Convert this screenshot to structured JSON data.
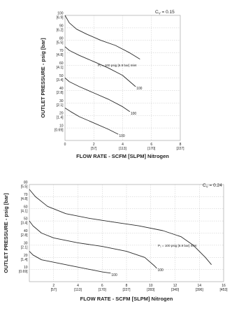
{
  "chart_data": [
    {
      "type": "line",
      "title": "",
      "cv_label": "C",
      "cv_sub": "V",
      "cv_value": " = 0.15",
      "xlabel": "FLOW RATE - SCFM [SLPM] Nitrogen",
      "ylabel": "OUTLET PRESSURE - psig [bar]",
      "xlim": [
        0,
        8
      ],
      "ylim": [
        0,
        100
      ],
      "x_ticks": [
        {
          "value": 0,
          "label": "0",
          "sub": ""
        },
        {
          "value": 2,
          "label": "2",
          "sub": "[57]"
        },
        {
          "value": 4,
          "label": "4",
          "sub": "[113]"
        },
        {
          "value": 6,
          "label": "6",
          "sub": "[170]"
        },
        {
          "value": 8,
          "label": "8",
          "sub": "[227]"
        }
      ],
      "y_ticks": [
        {
          "value": 10,
          "label": "10",
          "sub": "[0.69]"
        },
        {
          "value": 20,
          "label": "20",
          "sub": "[1.4]"
        },
        {
          "value": 30,
          "label": "30",
          "sub": "[2.1]"
        },
        {
          "value": 40,
          "label": "40",
          "sub": "[2.8]"
        },
        {
          "value": 50,
          "label": "50",
          "sub": "[3.4]"
        },
        {
          "value": 60,
          "label": "60",
          "sub": "[4.1]"
        },
        {
          "value": 70,
          "label": "70",
          "sub": "[4.8]"
        },
        {
          "value": 80,
          "label": "80",
          "sub": "[5.5]"
        },
        {
          "value": 90,
          "label": "90",
          "sub": "[6.2]"
        },
        {
          "value": 100,
          "label": "100",
          "sub": "[6.9]"
        }
      ],
      "annotation": "P₁ = 100 psig [6.9 bar] Inlet",
      "series": [
        {
          "label": "",
          "points": [
            [
              0,
              100
            ],
            [
              0.3,
              94
            ],
            [
              0.8,
              89
            ],
            [
              1.5,
              85
            ],
            [
              2.5,
              80
            ],
            [
              3.5,
              76
            ],
            [
              4.5,
              70
            ],
            [
              5.2,
              65
            ]
          ]
        },
        {
          "label": "100",
          "points": [
            [
              0,
              75
            ],
            [
              0.3,
              72
            ],
            [
              1,
              68
            ],
            [
              2,
              63
            ],
            [
              3,
              58
            ],
            [
              4,
              52
            ],
            [
              4.9,
              43
            ]
          ]
        },
        {
          "label": "100",
          "points": [
            [
              0,
              50
            ],
            [
              0.3,
              47
            ],
            [
              1,
              43
            ],
            [
              2,
              38
            ],
            [
              3,
              33
            ],
            [
              4,
              27
            ],
            [
              4.5,
              23
            ]
          ]
        },
        {
          "label": "100",
          "points": [
            [
              0,
              26
            ],
            [
              0.4,
              23
            ],
            [
              1,
              19
            ],
            [
              2,
              14
            ],
            [
              3,
              9
            ],
            [
              3.7,
              5
            ]
          ]
        }
      ],
      "grid": true,
      "legend": "none"
    },
    {
      "type": "line",
      "title": "",
      "cv_label": "C",
      "cv_sub": "V",
      "cv_value": " = 0.24",
      "xlabel": "FLOW RATE - SCFM [SLPM] Nitrogen",
      "ylabel": "OUTLET PRESSURE - psig [bar]",
      "xlim": [
        0,
        16
      ],
      "ylim": [
        0,
        80
      ],
      "x_ticks": [
        {
          "value": 2,
          "label": "2",
          "sub": "[57]"
        },
        {
          "value": 4,
          "label": "4",
          "sub": "[113]"
        },
        {
          "value": 6,
          "label": "6",
          "sub": "[170]"
        },
        {
          "value": 8,
          "label": "8",
          "sub": "[227]"
        },
        {
          "value": 10,
          "label": "10",
          "sub": "[283]"
        },
        {
          "value": 12,
          "label": "12",
          "sub": "[340]"
        },
        {
          "value": 14,
          "label": "14",
          "sub": "[396]"
        },
        {
          "value": 16,
          "label": "16",
          "sub": "[453]"
        }
      ],
      "y_ticks": [
        {
          "value": 10,
          "label": "10",
          "sub": "[0.69]"
        },
        {
          "value": 20,
          "label": "20",
          "sub": "[1.4]"
        },
        {
          "value": 30,
          "label": "30",
          "sub": "[2.1]"
        },
        {
          "value": 40,
          "label": "40",
          "sub": "[2.8]"
        },
        {
          "value": 50,
          "label": "50",
          "sub": "[3.4]"
        },
        {
          "value": 60,
          "label": "60",
          "sub": "[4.1]"
        },
        {
          "value": 70,
          "label": "70",
          "sub": "[4.8]"
        },
        {
          "value": 80,
          "label": "80",
          "sub": "[5.5]"
        }
      ],
      "annotation": "P₁ = 100 psig [6.9 bar] Inlet",
      "series": [
        {
          "label": "",
          "points": [
            [
              0,
              76
            ],
            [
              0.5,
              70
            ],
            [
              1.5,
              62
            ],
            [
              3,
              56
            ],
            [
              5,
              52
            ],
            [
              7,
              49
            ],
            [
              9,
              46
            ],
            [
              11,
              42
            ],
            [
              12.5,
              37
            ],
            [
              13.5,
              30
            ],
            [
              14.5,
              20
            ],
            [
              15,
              14
            ]
          ]
        },
        {
          "label": "100",
          "points": [
            [
              0,
              50
            ],
            [
              0.3,
              46
            ],
            [
              1,
              40
            ],
            [
              2,
              36
            ],
            [
              4,
              32
            ],
            [
              6,
              29
            ],
            [
              8,
              25
            ],
            [
              9.5,
              20
            ],
            [
              10.3,
              13
            ],
            [
              10.5,
              11
            ]
          ]
        },
        {
          "label": "100",
          "points": [
            [
              0,
              25
            ],
            [
              0.3,
              22
            ],
            [
              1,
              18
            ],
            [
              2,
              16
            ],
            [
              3,
              14
            ],
            [
              4,
              12
            ],
            [
              5,
              10
            ],
            [
              6,
              8
            ],
            [
              6.7,
              7
            ]
          ]
        }
      ],
      "grid": true,
      "legend": "none"
    }
  ]
}
